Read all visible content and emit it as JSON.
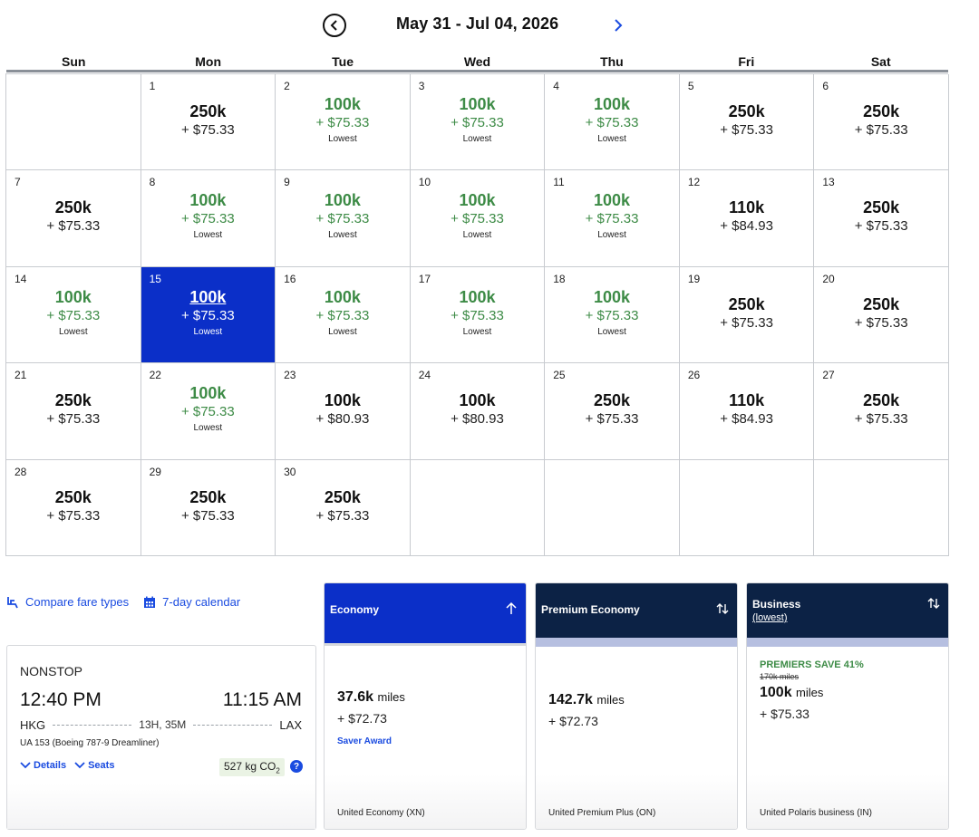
{
  "calendar": {
    "title": "May 31 - Jul 04, 2026",
    "weekdays": [
      "Sun",
      "Mon",
      "Tue",
      "Wed",
      "Thu",
      "Fri",
      "Sat"
    ],
    "lowest_label": "Lowest",
    "days": [
      {
        "day": "",
        "empty": true
      },
      {
        "day": "1",
        "miles": "250k",
        "tax": "+ $75.33",
        "lowest": false
      },
      {
        "day": "2",
        "miles": "100k",
        "tax": "+ $75.33",
        "lowest": true
      },
      {
        "day": "3",
        "miles": "100k",
        "tax": "+ $75.33",
        "lowest": true
      },
      {
        "day": "4",
        "miles": "100k",
        "tax": "+ $75.33",
        "lowest": true
      },
      {
        "day": "5",
        "miles": "250k",
        "tax": "+ $75.33",
        "lowest": false
      },
      {
        "day": "6",
        "miles": "250k",
        "tax": "+ $75.33",
        "lowest": false
      },
      {
        "day": "7",
        "miles": "250k",
        "tax": "+ $75.33",
        "lowest": false
      },
      {
        "day": "8",
        "miles": "100k",
        "tax": "+ $75.33",
        "lowest": true
      },
      {
        "day": "9",
        "miles": "100k",
        "tax": "+ $75.33",
        "lowest": true
      },
      {
        "day": "10",
        "miles": "100k",
        "tax": "+ $75.33",
        "lowest": true
      },
      {
        "day": "11",
        "miles": "100k",
        "tax": "+ $75.33",
        "lowest": true
      },
      {
        "day": "12",
        "miles": "110k",
        "tax": "+ $84.93",
        "lowest": false
      },
      {
        "day": "13",
        "miles": "250k",
        "tax": "+ $75.33",
        "lowest": false
      },
      {
        "day": "14",
        "miles": "100k",
        "tax": "+ $75.33",
        "lowest": true
      },
      {
        "day": "15",
        "miles": "100k",
        "tax": "+ $75.33",
        "lowest": true,
        "selected": true
      },
      {
        "day": "16",
        "miles": "100k",
        "tax": "+ $75.33",
        "lowest": true
      },
      {
        "day": "17",
        "miles": "100k",
        "tax": "+ $75.33",
        "lowest": true
      },
      {
        "day": "18",
        "miles": "100k",
        "tax": "+ $75.33",
        "lowest": true
      },
      {
        "day": "19",
        "miles": "250k",
        "tax": "+ $75.33",
        "lowest": false
      },
      {
        "day": "20",
        "miles": "250k",
        "tax": "+ $75.33",
        "lowest": false
      },
      {
        "day": "21",
        "miles": "250k",
        "tax": "+ $75.33",
        "lowest": false
      },
      {
        "day": "22",
        "miles": "100k",
        "tax": "+ $75.33",
        "lowest": true
      },
      {
        "day": "23",
        "miles": "100k",
        "tax": "+ $80.93",
        "lowest": false
      },
      {
        "day": "24",
        "miles": "100k",
        "tax": "+ $80.93",
        "lowest": false
      },
      {
        "day": "25",
        "miles": "250k",
        "tax": "+ $75.33",
        "lowest": false
      },
      {
        "day": "26",
        "miles": "110k",
        "tax": "+ $84.93",
        "lowest": false
      },
      {
        "day": "27",
        "miles": "250k",
        "tax": "+ $75.33",
        "lowest": false
      },
      {
        "day": "28",
        "miles": "250k",
        "tax": "+ $75.33",
        "lowest": false
      },
      {
        "day": "29",
        "miles": "250k",
        "tax": "+ $75.33",
        "lowest": false
      },
      {
        "day": "30",
        "miles": "250k",
        "tax": "+ $75.33",
        "lowest": false
      },
      {
        "day": "",
        "empty": true
      },
      {
        "day": "",
        "empty": true
      },
      {
        "day": "",
        "empty": true
      },
      {
        "day": "",
        "empty": true
      }
    ]
  },
  "links": {
    "compare": "Compare fare types",
    "seven_day": "7-day calendar"
  },
  "flight": {
    "stops": "NONSTOP",
    "depart_time": "12:40 PM",
    "arrive_time": "11:15 AM",
    "origin": "HKG",
    "destination": "LAX",
    "duration": "13H, 35M",
    "aircraft": "UA 153 (Boeing 787-9 Dreamliner)",
    "details_label": "Details",
    "seats_label": "Seats",
    "co2_value": "527 kg CO",
    "co2_sub": "2",
    "info_icon": "?"
  },
  "fares": {
    "economy": {
      "name": "Economy",
      "miles": "37.6k",
      "miles_unit": "miles",
      "tax": "+ $72.73",
      "tag": "Saver Award",
      "class": "United Economy (XN)"
    },
    "premium": {
      "name": "Premium Economy",
      "miles": "142.7k",
      "miles_unit": "miles",
      "tax": "+ $72.73",
      "class": "United Premium Plus (ON)"
    },
    "business": {
      "name": "Business",
      "sub": "(lowest)",
      "promo": "PREMIERS SAVE 41%",
      "old_price": "170k miles",
      "miles": "100k",
      "miles_unit": "miles",
      "tax": "+ $75.33",
      "class": "United Polaris business (IN)"
    }
  },
  "colors": {
    "accent_blue": "#0b2fc8",
    "navy": "#0c2245",
    "lowest_green": "#3d8b46",
    "link_blue": "#1a4be0"
  }
}
